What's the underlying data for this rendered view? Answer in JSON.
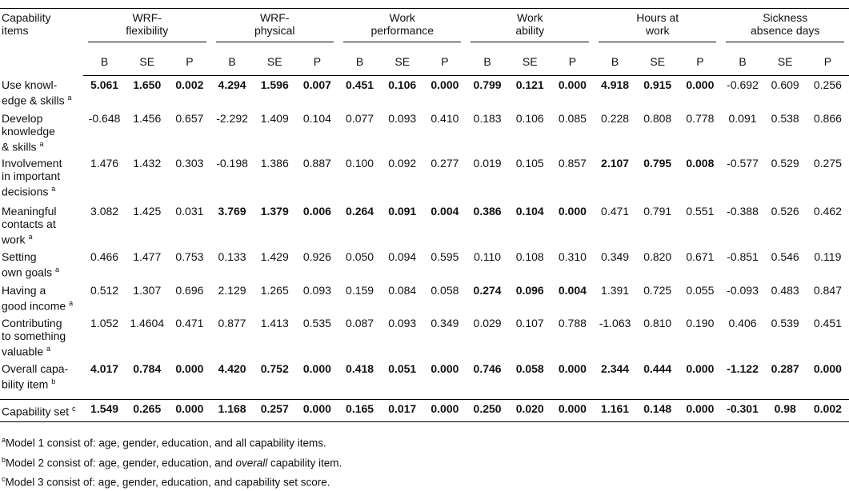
{
  "header": {
    "stub": [
      "Capability",
      "items"
    ],
    "groups": [
      [
        "WRF-",
        "flexibility"
      ],
      [
        "WRF-",
        "physical"
      ],
      [
        "Work",
        "performance"
      ],
      [
        "Work",
        "ability"
      ],
      [
        "Hours at",
        "work"
      ],
      [
        "Sickness",
        "absence days"
      ]
    ],
    "sub": [
      "B",
      "SE",
      "P"
    ]
  },
  "table": {
    "rows": [
      {
        "label": [
          "Use knowl-",
          "edge & skills"
        ],
        "note": "a",
        "values": [
          "5.061",
          "1.650",
          "0.002",
          "4.294",
          "1.596",
          "0.007",
          "0.451",
          "0.106",
          "0.000",
          "0.799",
          "0.121",
          "0.000",
          "4.918",
          "0.915",
          "0.000",
          "-0.692",
          "0.609",
          "0.256"
        ],
        "bold_groups": [
          0,
          1,
          2,
          3,
          4
        ]
      },
      {
        "label": [
          "Develop",
          "knowledge",
          "& skills"
        ],
        "note": "a",
        "values": [
          "-0.648",
          "1.456",
          "0.657",
          "-2.292",
          "1.409",
          "0.104",
          "0.077",
          "0.093",
          "0.410",
          "0.183",
          "0.106",
          "0.085",
          "0.228",
          "0.808",
          "0.778",
          "0.091",
          "0.538",
          "0.866"
        ],
        "bold_groups": []
      },
      {
        "label": [
          "Involvement",
          "in important",
          "decisions"
        ],
        "note": "a",
        "values": [
          "1.476",
          "1.432",
          "0.303",
          "-0.198",
          "1.386",
          "0.887",
          "0.100",
          "0.092",
          "0.277",
          "0.019",
          "0.105",
          "0.857",
          "2.107",
          "0.795",
          "0.008",
          "-0.577",
          "0.529",
          "0.275"
        ],
        "bold_groups": [
          4
        ]
      },
      {
        "label": [
          "Meaningful",
          "contacts at",
          "work"
        ],
        "note": "a",
        "values": [
          "3.082",
          "1.425",
          "0.031",
          "3.769",
          "1.379",
          "0.006",
          "0.264",
          "0.091",
          "0.004",
          "0.386",
          "0.104",
          "0.000",
          "0.471",
          "0.791",
          "0.551",
          "-0.388",
          "0.526",
          "0.462"
        ],
        "bold_groups": [
          1,
          2,
          3
        ]
      },
      {
        "label": [
          "Setting",
          "own goals"
        ],
        "note": "a",
        "values": [
          "0.466",
          "1.477",
          "0.753",
          "0.133",
          "1.429",
          "0.926",
          "0.050",
          "0.094",
          "0.595",
          "0.110",
          "0.108",
          "0.310",
          "0.349",
          "0.820",
          "0.671",
          "-0.851",
          "0.546",
          "0.119"
        ],
        "bold_groups": []
      },
      {
        "label": [
          "Having a",
          "good income"
        ],
        "note": "a",
        "values": [
          "0.512",
          "1.307",
          "0.696",
          "2.129",
          "1.265",
          "0.093",
          "0.159",
          "0.084",
          "0.058",
          "0.274",
          "0.096",
          "0.004",
          "1.391",
          "0.725",
          "0.055",
          "-0.093",
          "0.483",
          "0.847"
        ],
        "bold_groups": [
          3
        ]
      },
      {
        "label": [
          "Contributing",
          "to something",
          "valuable"
        ],
        "note": "a",
        "values": [
          "1.052",
          "1.4604",
          "0.471",
          "0.877",
          "1.413",
          "0.535",
          "0.087",
          "0.093",
          "0.349",
          "0.029",
          "0.107",
          "0.788",
          "-1.063",
          "0.810",
          "0.190",
          "0.406",
          "0.539",
          "0.451"
        ],
        "bold_groups": []
      },
      {
        "label": [
          "Overall capa-",
          "bility item"
        ],
        "note": "b",
        "values": [
          "4.017",
          "0.784",
          "0.000",
          "4.420",
          "0.752",
          "0.000",
          "0.418",
          "0.051",
          "0.000",
          "0.746",
          "0.058",
          "0.000",
          "2.344",
          "0.444",
          "0.000",
          "-1.122",
          "0.287",
          "0.000"
        ],
        "bold_groups": [
          0,
          1,
          2,
          3,
          4,
          5
        ]
      },
      {
        "label": [
          "Capability set"
        ],
        "note": "c",
        "values": [
          "1.549",
          "0.265",
          "0.000",
          "1.168",
          "0.257",
          "0.000",
          "0.165",
          "0.017",
          "0.000",
          "0.250",
          "0.020",
          "0.000",
          "1.161",
          "0.148",
          "0.000",
          "-0.301",
          "0.98",
          "0.002"
        ],
        "bold_groups": [
          0,
          1,
          2,
          3,
          4,
          5
        ]
      }
    ]
  },
  "footnotes": [
    {
      "mark": "a",
      "parts": [
        {
          "text": "Model 1 consist of: age, gender, education, and all capability items."
        }
      ]
    },
    {
      "mark": "b",
      "parts": [
        {
          "text": "Model 2 consist of: age, gender, education, and "
        },
        {
          "text": "overall",
          "italic": true
        },
        {
          "text": " capability item."
        }
      ]
    },
    {
      "mark": "c",
      "parts": [
        {
          "text": "Model 3 consist of: age, gender, education, and capability set score."
        }
      ]
    }
  ]
}
